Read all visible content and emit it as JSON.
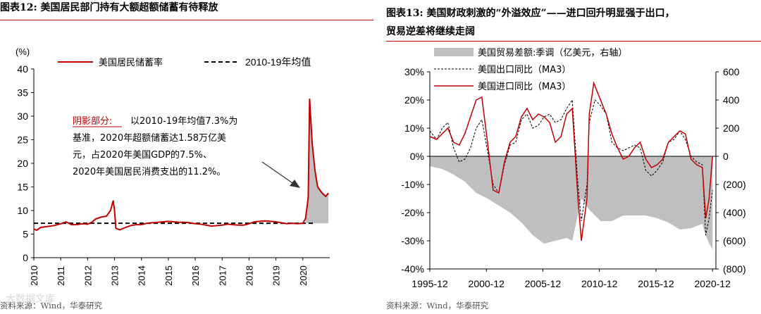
{
  "left": {
    "title_lines": [
      "图表12:  美国居民部门持有大额超额储蓄有待释放"
    ],
    "source": "资料来源：Wind，华泰研究",
    "annotation": {
      "label": "阴影部分:",
      "lines": [
        "以2010-19年均值7.3%为",
        "基准，2020年超额储蓄达1.58万亿美",
        "元，占2020年美国GDP的7.5%、",
        "2020年美国居民消费支出的11.2%。"
      ]
    }
  },
  "right": {
    "title_lines": [
      "图表13:  美国财政刺激的“外溢效应”——进口回升明显强于出口，",
      "贸易逆差将继续走阔"
    ],
    "source": "资料来源：Wind，华泰研究"
  },
  "watermark": "大数据文库",
  "colors": {
    "red": "#c00000",
    "shade": "#bfbfbf",
    "black": "#000000",
    "rule": "#c00000"
  },
  "chart_data": [
    {
      "type": "line",
      "title": "美国居民部门持有大额超额储蓄有待释放",
      "ylabel": "(%)",
      "ylim": [
        0,
        40
      ],
      "yticks": [
        "0",
        "5",
        "10",
        "15",
        "20",
        "25",
        "30",
        "35",
        "40"
      ],
      "xlabels": [
        "2010",
        "2011",
        "2012",
        "2013",
        "2014",
        "2015",
        "2016",
        "2017",
        "2018",
        "2019",
        "2020"
      ],
      "legend": [
        "美国居民储蓄率",
        "2010-19年均值"
      ],
      "legend_position": "top",
      "series": [
        {
          "name": "美国居民储蓄率",
          "color": "#c00000",
          "style": "solid",
          "points": [
            [
              2010.0,
              6.1
            ],
            [
              2010.1,
              5.8
            ],
            [
              2010.25,
              6.4
            ],
            [
              2010.5,
              6.6
            ],
            [
              2010.75,
              6.8
            ],
            [
              2011.0,
              7.2
            ],
            [
              2011.2,
              7.6
            ],
            [
              2011.4,
              7.0
            ],
            [
              2011.6,
              7.0
            ],
            [
              2011.8,
              7.2
            ],
            [
              2012.0,
              7.1
            ],
            [
              2012.15,
              7.5
            ],
            [
              2012.3,
              8.2
            ],
            [
              2012.5,
              8.6
            ],
            [
              2012.7,
              8.8
            ],
            [
              2012.85,
              10.0
            ],
            [
              2012.95,
              12.1
            ],
            [
              2013.0,
              10.0
            ],
            [
              2013.05,
              6.2
            ],
            [
              2013.2,
              5.9
            ],
            [
              2013.4,
              6.4
            ],
            [
              2013.6,
              6.8
            ],
            [
              2013.8,
              7.0
            ],
            [
              2014.0,
              7.0
            ],
            [
              2014.2,
              7.3
            ],
            [
              2014.4,
              7.4
            ],
            [
              2014.6,
              7.5
            ],
            [
              2014.8,
              7.6
            ],
            [
              2015.0,
              7.7
            ],
            [
              2015.2,
              7.6
            ],
            [
              2015.4,
              7.5
            ],
            [
              2015.6,
              7.5
            ],
            [
              2015.8,
              7.4
            ],
            [
              2016.0,
              7.2
            ],
            [
              2016.2,
              7.1
            ],
            [
              2016.4,
              6.9
            ],
            [
              2016.6,
              6.7
            ],
            [
              2016.8,
              6.8
            ],
            [
              2017.0,
              6.9
            ],
            [
              2017.2,
              7.1
            ],
            [
              2017.4,
              7.0
            ],
            [
              2017.6,
              6.9
            ],
            [
              2017.8,
              6.9
            ],
            [
              2018.0,
              7.2
            ],
            [
              2018.2,
              7.6
            ],
            [
              2018.4,
              7.7
            ],
            [
              2018.6,
              7.8
            ],
            [
              2018.8,
              7.7
            ],
            [
              2019.0,
              7.6
            ],
            [
              2019.2,
              7.4
            ],
            [
              2019.4,
              7.2
            ],
            [
              2019.6,
              7.3
            ],
            [
              2019.8,
              7.2
            ],
            [
              2020.0,
              7.3
            ],
            [
              2020.1,
              8.3
            ],
            [
              2020.2,
              12.8
            ],
            [
              2020.25,
              33.7
            ],
            [
              2020.35,
              24.0
            ],
            [
              2020.45,
              18.5
            ],
            [
              2020.55,
              15.0
            ],
            [
              2020.65,
              14.2
            ],
            [
              2020.75,
              13.5
            ],
            [
              2020.85,
              13.0
            ],
            [
              2020.95,
              13.7
            ]
          ]
        },
        {
          "name": "2010-19年均值",
          "color": "#000000",
          "style": "dashed",
          "value": 7.3
        }
      ]
    },
    {
      "type": "line",
      "title": "美国财政刺激的“外溢效应”——进口回升明显强于出口，贸易逆差将继续走阔",
      "ylim": [
        -40,
        30
      ],
      "yticks": [
        "30%",
        "20%",
        "10%",
        "0%",
        "-10%",
        "-20%",
        "-30%",
        "-40%"
      ],
      "y2lim": [
        -800,
        600
      ],
      "y2ticks": [
        "600",
        "400",
        "200",
        "0",
        "(200)",
        "(400)",
        "(600)",
        "(800)"
      ],
      "xlabels": [
        "1995-12",
        "2000-12",
        "2005-12",
        "2010-12",
        "2015-12",
        "2020-12"
      ],
      "legend": [
        "美国贸易差额:季调（亿美元，右轴）",
        "美国出口同比（MA3）",
        "美国进口同比（MA3）"
      ],
      "legend_position": "top-left",
      "series": [
        {
          "name": "美国贸易差额:季调（亿美元，右轴）",
          "type": "area",
          "axis": "right",
          "color": "#bfbfbf",
          "points": [
            [
              1995.9,
              -70
            ],
            [
              1997,
              -90
            ],
            [
              1998,
              -130
            ],
            [
              1999,
              -180
            ],
            [
              2000,
              -260
            ],
            [
              2001,
              -300
            ],
            [
              2002,
              -350
            ],
            [
              2003,
              -400
            ],
            [
              2004,
              -470
            ],
            [
              2005,
              -560
            ],
            [
              2006,
              -620
            ],
            [
              2007,
              -600
            ],
            [
              2008,
              -580
            ],
            [
              2008.5,
              -600
            ],
            [
              2009.3,
              -300
            ],
            [
              2010,
              -380
            ],
            [
              2011,
              -460
            ],
            [
              2012,
              -460
            ],
            [
              2013,
              -420
            ],
            [
              2014,
              -420
            ],
            [
              2015,
              -420
            ],
            [
              2016,
              -440
            ],
            [
              2017,
              -470
            ],
            [
              2018,
              -520
            ],
            [
              2019,
              -510
            ],
            [
              2020,
              -480
            ],
            [
              2020.3,
              -560
            ],
            [
              2020.6,
              -620
            ],
            [
              2020.9,
              -660
            ]
          ]
        },
        {
          "name": "美国出口同比（MA3）",
          "type": "line",
          "axis": "left",
          "style": "dashed",
          "color": "#000000",
          "points": [
            [
              1995.9,
              9
            ],
            [
              1996.5,
              6
            ],
            [
              1997,
              10
            ],
            [
              1997.5,
              12
            ],
            [
              1998,
              3
            ],
            [
              1998.5,
              -2
            ],
            [
              1999,
              -1
            ],
            [
              1999.5,
              3
            ],
            [
              2000,
              10
            ],
            [
              2000.5,
              13
            ],
            [
              2001,
              2
            ],
            [
              2001.5,
              -10
            ],
            [
              2002,
              -13
            ],
            [
              2002.5,
              -3
            ],
            [
              2003,
              4
            ],
            [
              2003.5,
              5
            ],
            [
              2004,
              13
            ],
            [
              2004.5,
              15
            ],
            [
              2005,
              10
            ],
            [
              2005.5,
              11
            ],
            [
              2006,
              14
            ],
            [
              2006.5,
              15
            ],
            [
              2007,
              12
            ],
            [
              2007.5,
              13
            ],
            [
              2008,
              17
            ],
            [
              2008.5,
              20
            ],
            [
              2009,
              -10
            ],
            [
              2009.3,
              -23
            ],
            [
              2009.8,
              -10
            ],
            [
              2010,
              12
            ],
            [
              2010.5,
              20
            ],
            [
              2011,
              18
            ],
            [
              2011.5,
              15
            ],
            [
              2012,
              5
            ],
            [
              2012.5,
              3
            ],
            [
              2013,
              2
            ],
            [
              2013.5,
              3
            ],
            [
              2014,
              4
            ],
            [
              2014.5,
              3
            ],
            [
              2015,
              -5
            ],
            [
              2015.5,
              -7
            ],
            [
              2016,
              -5
            ],
            [
              2016.5,
              -2
            ],
            [
              2017,
              5
            ],
            [
              2017.5,
              6
            ],
            [
              2018,
              9
            ],
            [
              2018.5,
              6
            ],
            [
              2019,
              0
            ],
            [
              2019.5,
              -2
            ],
            [
              2020,
              -3
            ],
            [
              2020.3,
              -28
            ],
            [
              2020.6,
              -22
            ],
            [
              2020.9,
              -12
            ]
          ]
        },
        {
          "name": "美国进口同比（MA3）",
          "type": "line",
          "axis": "left",
          "style": "solid",
          "color": "#c00000",
          "points": [
            [
              1995.9,
              7
            ],
            [
              1996.5,
              6
            ],
            [
              1997,
              8
            ],
            [
              1997.5,
              10
            ],
            [
              1998,
              5
            ],
            [
              1998.5,
              4
            ],
            [
              1999,
              8
            ],
            [
              1999.5,
              14
            ],
            [
              2000,
              20
            ],
            [
              2000.5,
              21
            ],
            [
              2001,
              5
            ],
            [
              2001.5,
              -12
            ],
            [
              2002,
              -13
            ],
            [
              2002.5,
              -2
            ],
            [
              2003,
              5
            ],
            [
              2003.5,
              7
            ],
            [
              2004,
              14
            ],
            [
              2004.5,
              17
            ],
            [
              2005,
              13
            ],
            [
              2005.5,
              15
            ],
            [
              2006,
              14
            ],
            [
              2006.5,
              12
            ],
            [
              2007,
              5
            ],
            [
              2007.5,
              7
            ],
            [
              2008,
              15
            ],
            [
              2008.5,
              17
            ],
            [
              2009,
              -15
            ],
            [
              2009.3,
              -30
            ],
            [
              2009.8,
              -15
            ],
            [
              2010,
              15
            ],
            [
              2010.4,
              26
            ],
            [
              2011,
              20
            ],
            [
              2011.5,
              15
            ],
            [
              2012,
              8
            ],
            [
              2012.5,
              3
            ],
            [
              2013,
              -1
            ],
            [
              2013.5,
              0
            ],
            [
              2014,
              3
            ],
            [
              2014.5,
              5
            ],
            [
              2015,
              -1
            ],
            [
              2015.5,
              -4
            ],
            [
              2016,
              -3
            ],
            [
              2016.5,
              -1
            ],
            [
              2017,
              5
            ],
            [
              2017.5,
              7
            ],
            [
              2018,
              9
            ],
            [
              2018.5,
              8
            ],
            [
              2019,
              -1
            ],
            [
              2019.5,
              -3
            ],
            [
              2020,
              -4
            ],
            [
              2020.3,
              -22
            ],
            [
              2020.6,
              -15
            ],
            [
              2020.9,
              0
            ]
          ]
        }
      ]
    }
  ]
}
